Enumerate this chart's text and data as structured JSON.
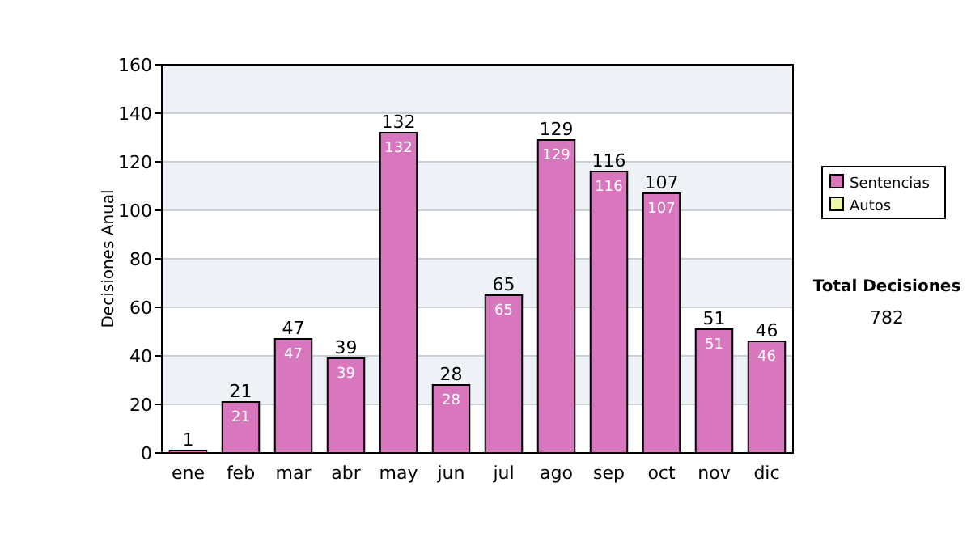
{
  "chart_data": {
    "type": "bar",
    "stacked": true,
    "ylabel": "Decisiones Anual",
    "categories": [
      "ene",
      "feb",
      "mar",
      "abr",
      "may",
      "jun",
      "jul",
      "ago",
      "sep",
      "oct",
      "nov",
      "dic"
    ],
    "series": [
      {
        "name": "Sentencias",
        "color": "#d877bd",
        "values": [
          1,
          21,
          47,
          39,
          132,
          28,
          65,
          129,
          116,
          107,
          51,
          46
        ],
        "value_labels": [
          null,
          "21",
          "47",
          "39",
          "132",
          "28",
          "65",
          "129",
          "116",
          "107",
          "51",
          "46"
        ]
      },
      {
        "name": "Autos",
        "color": "#eef5a8",
        "values": [
          0,
          0,
          0,
          0,
          0,
          0,
          0,
          0,
          0,
          0,
          0,
          0
        ]
      }
    ],
    "totals": [
      "1",
      "21",
      "47",
      "39",
      "132",
      "28",
      "65",
      "129",
      "116",
      "107",
      "51",
      "46"
    ],
    "ylim": [
      0,
      160
    ],
    "yticks": [
      0,
      20,
      40,
      60,
      80,
      100,
      120,
      140,
      160
    ],
    "grid": "y",
    "legend": "right",
    "annotations": [
      "Total Decisiones",
      "782"
    ]
  }
}
